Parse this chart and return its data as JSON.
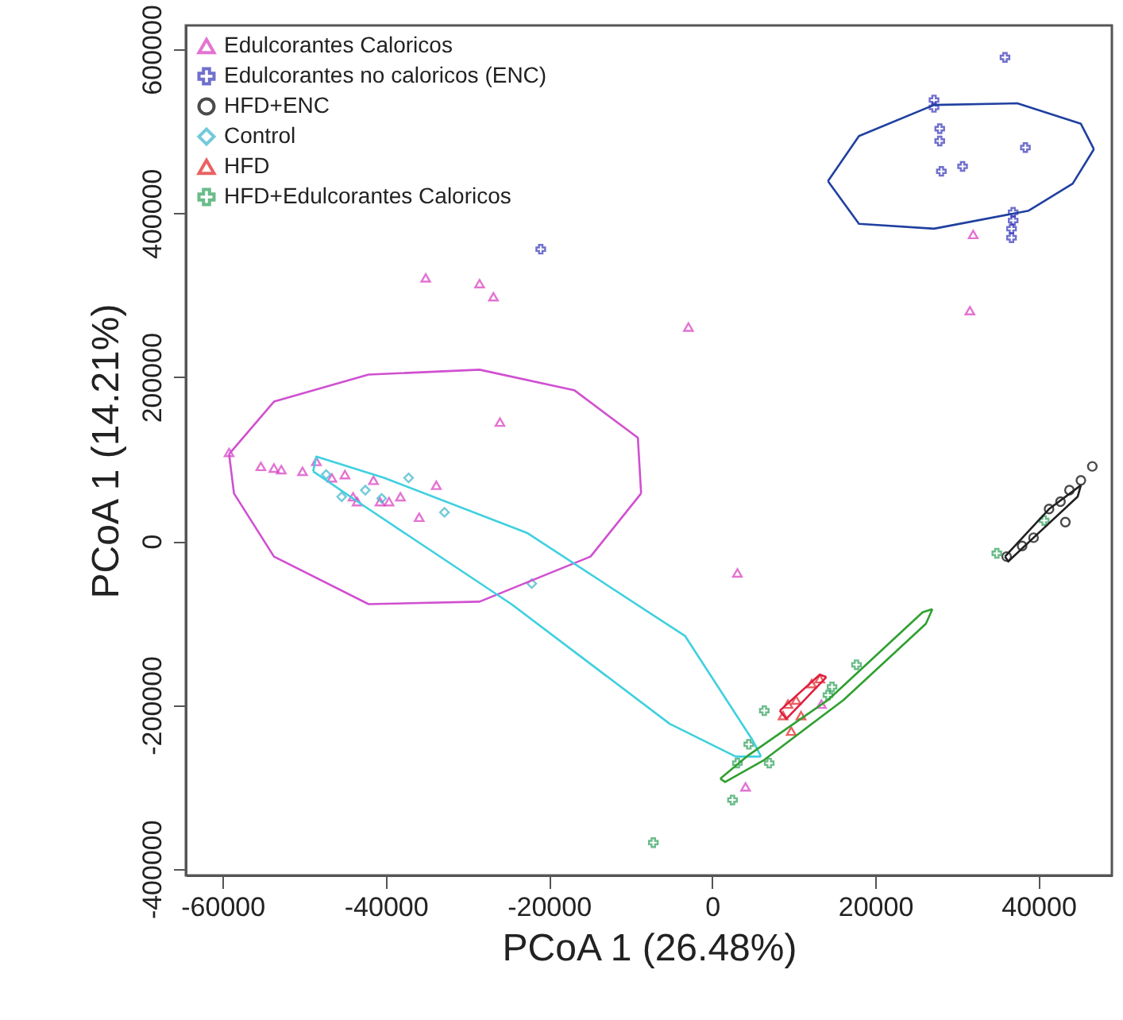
{
  "chart_data": {
    "type": "scatter",
    "xlabel": "PCoA 1 (26.48%)",
    "ylabel": "PCoA 1 (14.21%)",
    "xlim": [
      -64500,
      49000
    ],
    "ylim": [
      -408000,
      629000
    ],
    "xticks": [
      -60000,
      -40000,
      -20000,
      0,
      20000,
      40000
    ],
    "yticks": [
      -400000,
      -200000,
      0,
      200000,
      400000,
      600000
    ],
    "grid": false,
    "legend": "top left",
    "series": [
      {
        "name": "Edulcorantes Caloricos",
        "color": "#d838c0",
        "marker": "triangle",
        "x": [
          -35100,
          -28500,
          -26800,
          -26000,
          -59200,
          -55300,
          -53700,
          -52800,
          -50200,
          -48500,
          -46600,
          -45000,
          -44000,
          -43500,
          -41500,
          -40700,
          -39600,
          -38200,
          -35900,
          -2900,
          32000,
          31600,
          3100,
          4100,
          13400,
          -33800
        ],
        "values": [
          321000,
          314000,
          298000,
          145000,
          108000,
          91000,
          89000,
          87000,
          85000,
          97000,
          77000,
          81000,
          54000,
          48000,
          74000,
          48000,
          48000,
          54000,
          29000,
          261000,
          374000,
          281000,
          -39000,
          -300000,
          -199000,
          68000
        ]
      },
      {
        "name": "Edulcorantes no caloricos (ENC)",
        "color": "#3434b8",
        "marker": "cross",
        "x": [
          35900,
          27200,
          27200,
          27900,
          27900,
          38400,
          28100,
          36900,
          36900,
          36700,
          36700,
          -21000,
          30700
        ],
        "values": [
          590000,
          538000,
          529000,
          503000,
          488000,
          480000,
          451000,
          401000,
          391000,
          381000,
          370000,
          356000,
          457000
        ]
      },
      {
        "name": "HFD+ENC",
        "color": "#000000",
        "marker": "circle",
        "x": [
          46600,
          45200,
          43800,
          42700,
          43300,
          39400,
          38000,
          36100,
          41300
        ],
        "values": [
          91000,
          74000,
          62000,
          48000,
          23000,
          4000,
          -6000,
          -19000,
          39000
        ]
      },
      {
        "name": "Control",
        "color": "#38b4cc",
        "marker": "diamond",
        "x": [
          -47300,
          -45400,
          -42500,
          -40500,
          -37200,
          -32800,
          -22100
        ],
        "values": [
          81000,
          54000,
          62000,
          52000,
          77000,
          35000,
          -52000
        ]
      },
      {
        "name": "HFD",
        "color": "#e02020",
        "marker": "triangle",
        "x": [
          8700,
          9300,
          10300,
          12200,
          13200,
          9700,
          10900
        ],
        "values": [
          -213000,
          -199000,
          -194000,
          -174000,
          -168000,
          -232000,
          -213000
        ]
      },
      {
        "name": "HFD+Edulcorantes Caloricos",
        "color": "#2ca05a",
        "marker": "cross",
        "x": [
          4500,
          3100,
          7000,
          6400,
          14200,
          17700,
          2500,
          -7200,
          14700,
          34900,
          40700
        ],
        "values": [
          -248000,
          -271000,
          -271000,
          -207000,
          -188000,
          -151000,
          -316000,
          -368000,
          -178000,
          -15000,
          25000
        ]
      },
      {
        "type": "line",
        "color": "#d050d0",
        "x": [
          -59200,
          -53700,
          -42100,
          -28500,
          -16900,
          -9100,
          -8700
        ],
        "values": [
          106000,
          170000,
          203000,
          209000,
          184000,
          126000,
          58000
        ]
      },
      {
        "type": "line",
        "color": "#d050d0",
        "x": [
          -59200,
          -58600,
          -53700,
          -42100,
          -28500,
          -14900,
          -8700
        ],
        "values": [
          106000,
          58000,
          -19000,
          -77000,
          -74000,
          -19000,
          58000
        ]
      },
      {
        "type": "line",
        "color": "#2040a0",
        "x": [
          14200,
          18000,
          27200,
          37400,
          45200,
          46800
        ],
        "values": [
          439000,
          494000,
          532000,
          534000,
          509000,
          478000
        ]
      },
      {
        "type": "line",
        "color": "#2040a0",
        "x": [
          14200,
          18000,
          27200,
          38800,
          44200,
          46800
        ],
        "values": [
          439000,
          387000,
          381000,
          403000,
          436000,
          478000
        ]
      },
      {
        "type": "line",
        "color": "#40d0e0",
        "x": [
          -48900,
          -48500,
          -40200,
          -22700,
          -3300,
          4900,
          6000
        ],
        "values": [
          85000,
          103000,
          77000,
          10000,
          -116000,
          -242000,
          -263000
        ]
      },
      {
        "type": "line",
        "color": "#40d0e0",
        "x": [
          -48900,
          -42100,
          -24600,
          -5200,
          2900,
          6000
        ],
        "values": [
          85000,
          39000,
          -77000,
          -223000,
          -263000,
          -263000
        ]
      },
      {
        "type": "line",
        "color": "#30a030",
        "x": [
          1000,
          4500,
          14200,
          25800,
          27000
        ],
        "values": [
          -290000,
          -261000,
          -194000,
          -87000,
          -83000
        ]
      },
      {
        "type": "line",
        "color": "#30a030",
        "x": [
          1000,
          1600,
          6400,
          16100,
          26200,
          27000
        ],
        "values": [
          -290000,
          -294000,
          -267000,
          -194000,
          -101000,
          -83000
        ]
      },
      {
        "type": "line",
        "color": "#202020",
        "x": [
          35900,
          41300,
          45200
        ],
        "values": [
          -19000,
          39000,
          68000
        ]
      },
      {
        "type": "line",
        "color": "#202020",
        "x": [
          35900,
          36300,
          39400,
          44800,
          45200
        ],
        "values": [
          -19000,
          -25000,
          4000,
          54000,
          68000
        ]
      },
      {
        "type": "line",
        "color": "#e02040",
        "x": [
          8300,
          13200,
          14000
        ],
        "values": [
          -207000,
          -163000,
          -166000
        ]
      },
      {
        "type": "line",
        "color": "#e02040",
        "x": [
          8300,
          9100,
          14000
        ],
        "values": [
          -207000,
          -217000,
          -166000
        ]
      }
    ]
  }
}
